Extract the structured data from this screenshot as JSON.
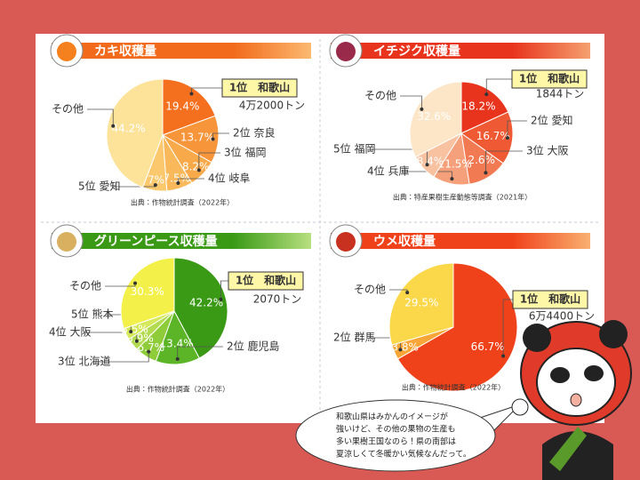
{
  "chart_data": [
    {
      "type": "pie",
      "title": "カキ収穫量",
      "categories": [
        "1位　和歌山",
        "2位 奈良",
        "3位 福岡",
        "4位 岐阜",
        "5位 愛知",
        "その他"
      ],
      "values": [
        19.4,
        13.7,
        8.2,
        7.5,
        7,
        44.2
      ],
      "value_labels": [
        "19.4%",
        "13.7%",
        "8.2%",
        "7.5%",
        "7%",
        "44.2%"
      ],
      "colors": [
        "#f4701e",
        "#f7953a",
        "#f8a94a",
        "#f9b95a",
        "#fbc86d",
        "#fde39a"
      ],
      "amount_label": "4万2000トン",
      "source": "出典：作物統計調査（2022年）"
    },
    {
      "type": "pie",
      "title": "イチジク収穫量",
      "categories": [
        "1位　和歌山",
        "2位 愛知",
        "3位 大阪",
        "4位 兵庫",
        "5位 福岡",
        "その他"
      ],
      "values": [
        18.2,
        16.7,
        12.6,
        11.5,
        8.4,
        32.6
      ],
      "value_labels": [
        "18.2%",
        "16.7%",
        "12.6%",
        "11.5%",
        "8.4%",
        "32.6%"
      ],
      "colors": [
        "#e8341c",
        "#ef5a34",
        "#f27a52",
        "#f5a07a",
        "#f8c1a0",
        "#fde6c8"
      ],
      "amount_label": "1844トン",
      "source": "出典：特産果樹生産動態等調査（2021年）"
    },
    {
      "type": "pie",
      "title": "グリーンピース収穫量",
      "categories": [
        "1位　和歌山",
        "2位 鹿児島",
        "3位 北海道",
        "4位 大阪",
        "5位 熊本",
        "その他"
      ],
      "values": [
        42.2,
        13.4,
        6.7,
        3.9,
        3.5,
        30.3
      ],
      "value_labels": [
        "42.2%",
        "13.4%",
        "6.7%",
        "3.9%",
        "3.5%",
        "30.3%"
      ],
      "colors": [
        "#3a9a16",
        "#5cb526",
        "#8fcc3a",
        "#b3db50",
        "#d5e85a",
        "#f3f04a"
      ],
      "amount_label": "2070トン",
      "source": "出典：作物統計調査（2022年）"
    },
    {
      "type": "pie",
      "title": "ウメ収穫量",
      "categories": [
        "1位　和歌山",
        "2位 群馬",
        "その他"
      ],
      "values": [
        66.7,
        3.8,
        29.5
      ],
      "value_labels": [
        "66.7%",
        "3.8%",
        "29.5%"
      ],
      "colors": [
        "#f0421a",
        "#f9a638",
        "#fbd84a"
      ],
      "amount_label": "6万4400トン",
      "source": "出典：作物統計調査（2022年）"
    }
  ],
  "speech": {
    "lines": [
      "和歌山県はみかんのイメージが",
      "強いけど、その他の果物の生産も",
      "多い果樹王国なのら！県の南部は",
      "夏涼しくて冬暖かい気候なんだって。"
    ]
  }
}
